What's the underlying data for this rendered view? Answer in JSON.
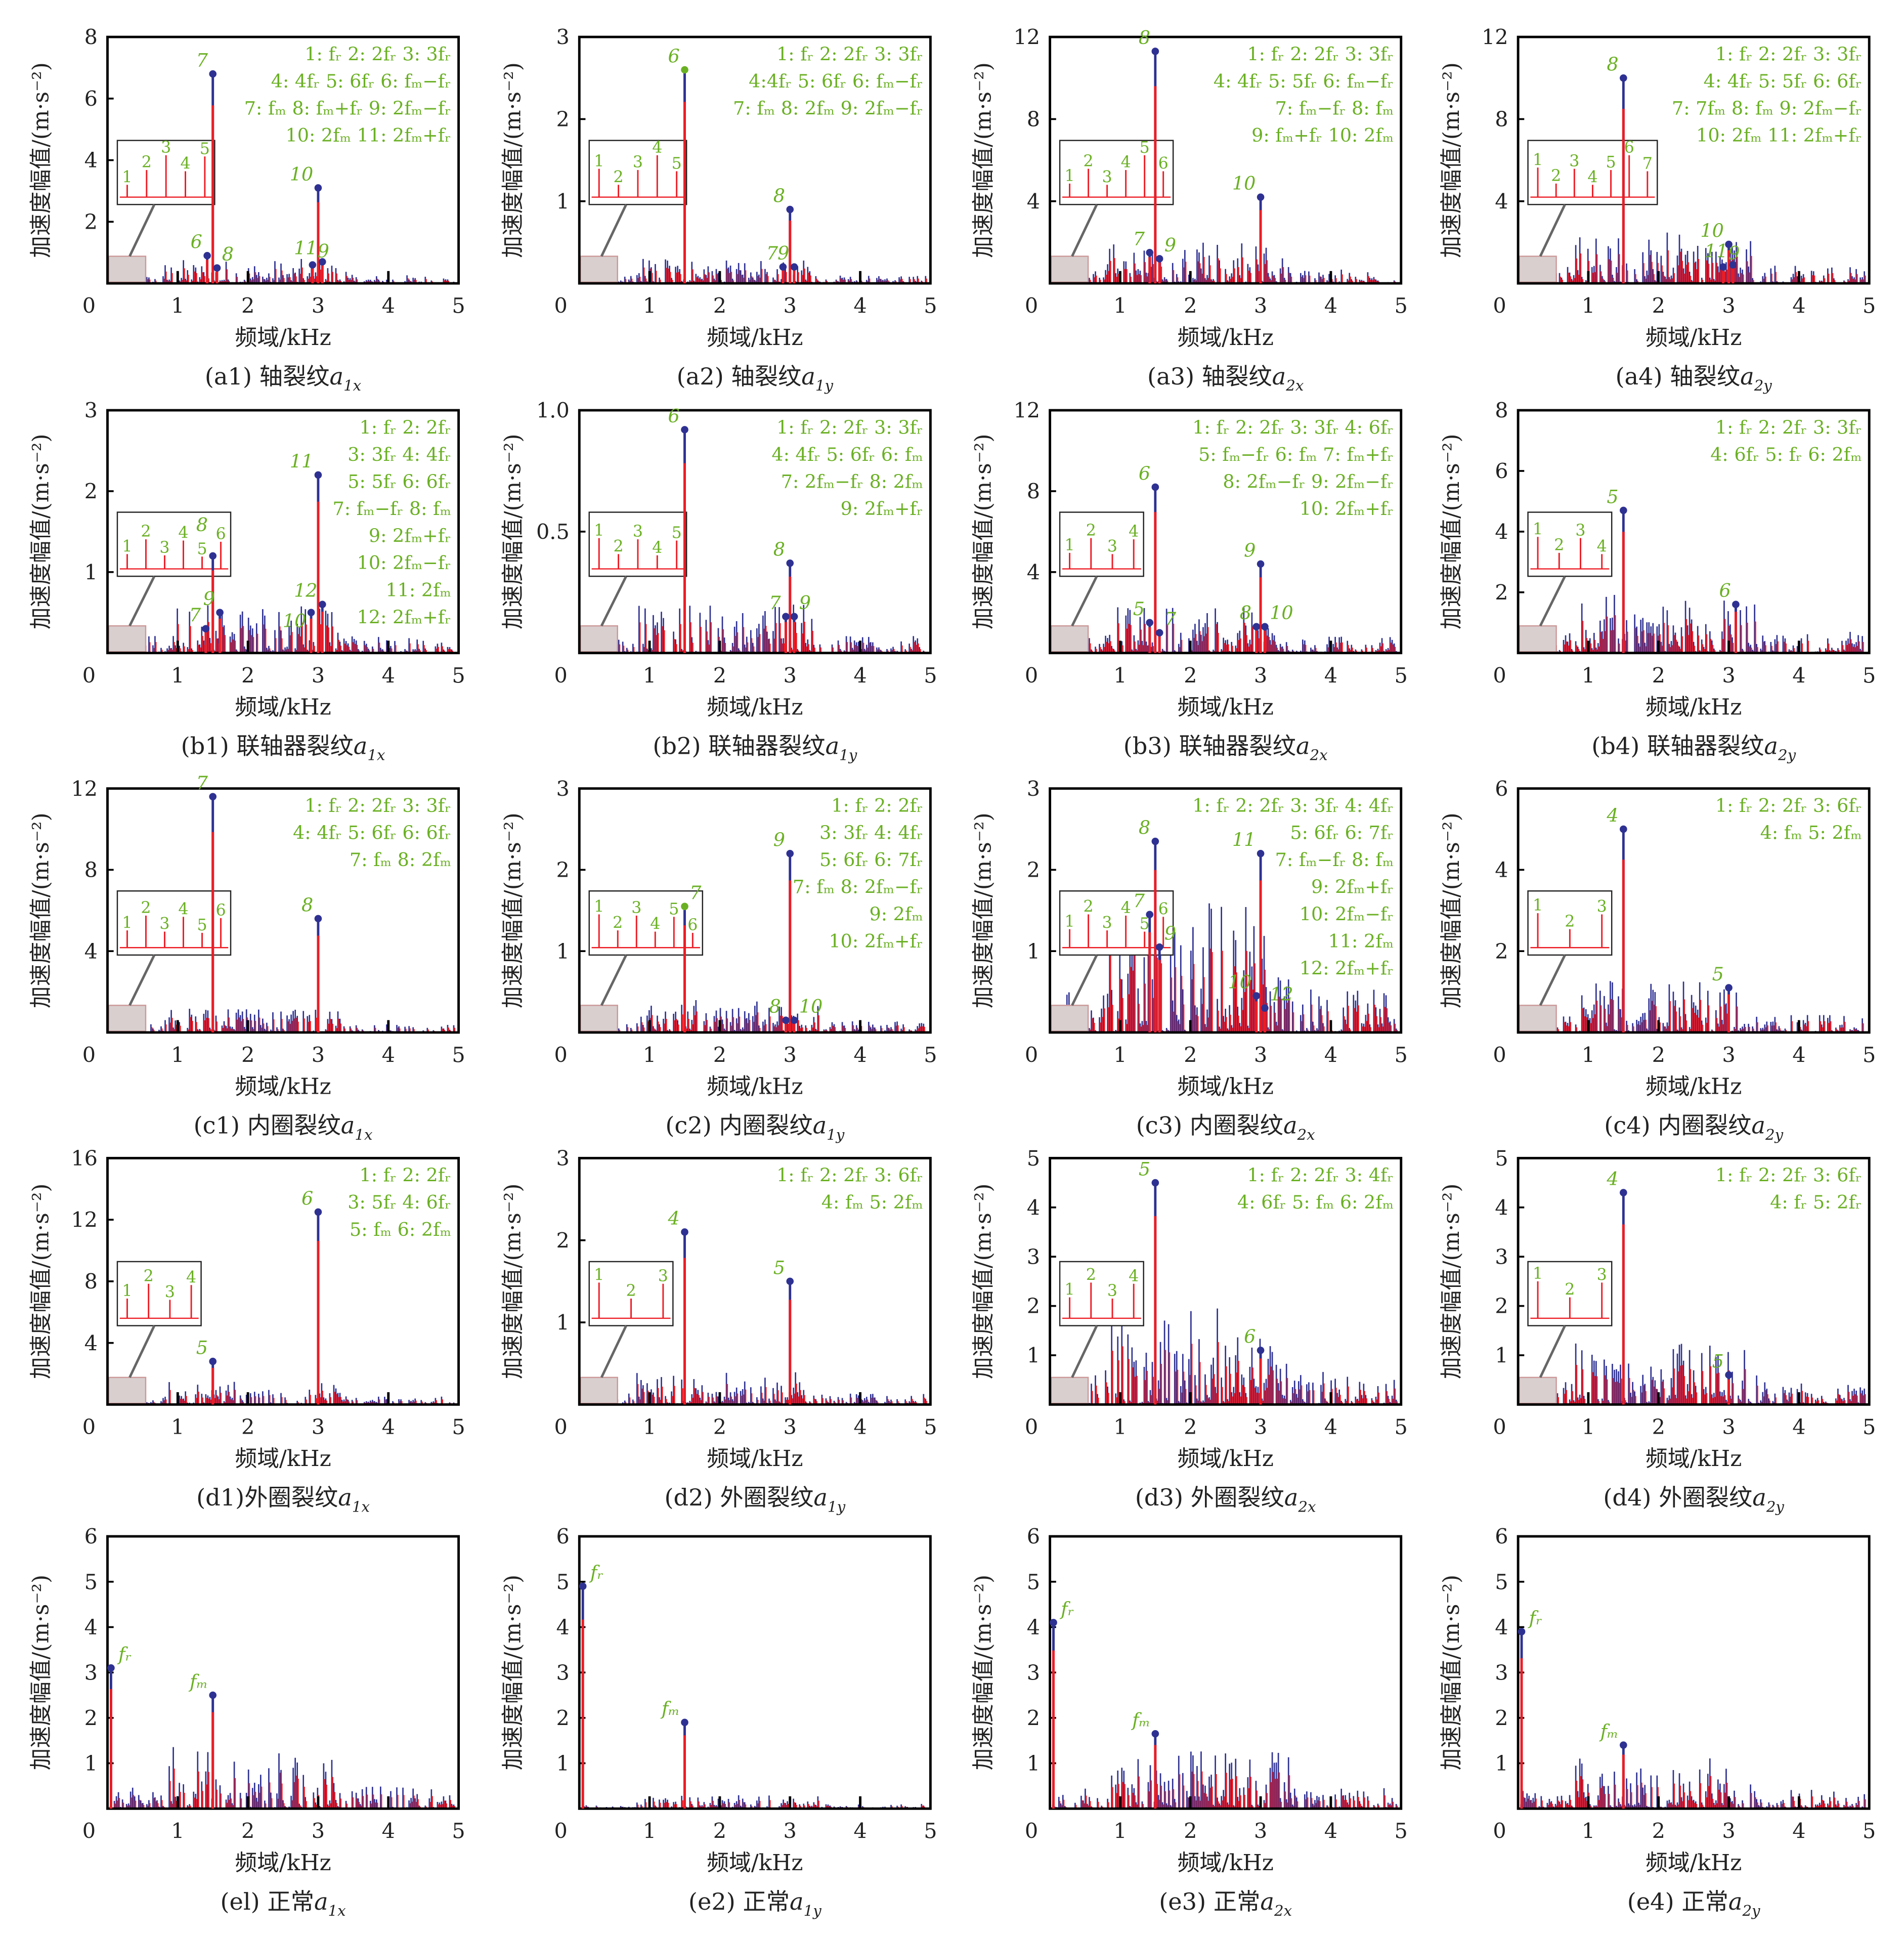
{
  "colors": {
    "blue": "#2e3192",
    "red": "#ed1c24",
    "green": "#6ab023",
    "inset": "#d9cfcf"
  },
  "common": {
    "xlabel": "频域/kHz",
    "ylabel": "加速度幅值/(m·s⁻²)",
    "xticks": [
      "0",
      "1",
      "2",
      "3",
      "4",
      "5"
    ]
  },
  "chart_data": [
    {
      "id": "a1",
      "type": "bar",
      "title": {
        "prefix": "(a1) 轴裂纹",
        "var": "a",
        "sub": "1x"
      },
      "xlim": [
        0,
        5
      ],
      "ylim": [
        0,
        8
      ],
      "yticks": [
        "2",
        "4",
        "6",
        "8"
      ],
      "noise_level": 0.8,
      "legend": [
        "1: fᵣ    2: 2fᵣ    3: 3fᵣ",
        "4: 4fᵣ  5: 6fᵣ   6: fₘ−fᵣ",
        "7: fₘ   8: fₘ+fᵣ  9: 2fₘ−fᵣ",
        "10: 2fₘ     11: 2fₘ+fᵣ"
      ],
      "inset": [
        "1",
        "2",
        "3",
        "4",
        "5"
      ],
      "peaks": [
        {
          "label": "7",
          "f": 1.5,
          "amp": 6.8
        },
        {
          "label": "10",
          "f": 3.0,
          "amp": 3.1
        },
        {
          "label": "6",
          "f": 1.42,
          "amp": 0.9
        },
        {
          "label": "8",
          "f": 1.56,
          "amp": 0.5
        },
        {
          "label": "9",
          "f": 2.92,
          "amp": 0.6
        },
        {
          "label": "11",
          "f": 3.06,
          "amp": 0.7
        }
      ]
    },
    {
      "id": "a2",
      "type": "bar",
      "title": {
        "prefix": "(a2) 轴裂纹",
        "var": "a",
        "sub": "1y"
      },
      "xlim": [
        0,
        5
      ],
      "ylim": [
        0,
        3
      ],
      "yticks": [
        "1",
        "2",
        "3"
      ],
      "noise_level": 0.3,
      "legend": [
        "1: fᵣ    2: 2fᵣ    3: 3fᵣ",
        "4:4fᵣ  5: 6fᵣ   6: fₘ−fᵣ",
        "7: fₘ   8: 2fₘ   9: 2fₘ−fᵣ"
      ],
      "inset": [
        "1",
        "2",
        "3",
        "4",
        "5"
      ],
      "peaks": [
        {
          "label": "6",
          "f": 1.5,
          "amp": 2.6,
          "green": true
        },
        {
          "label": "8",
          "f": 3.0,
          "amp": 0.9
        },
        {
          "label": "7",
          "f": 2.9,
          "amp": 0.2
        },
        {
          "label": "9",
          "f": 3.06,
          "amp": 0.2
        }
      ]
    },
    {
      "id": "a3",
      "type": "bar",
      "title": {
        "prefix": "(a3) 轴裂纹",
        "var": "a",
        "sub": "2x"
      },
      "xlim": [
        0,
        5
      ],
      "ylim": [
        0,
        12
      ],
      "yticks": [
        "4",
        "8",
        "12"
      ],
      "noise_level": 2.0,
      "legend": [
        "1: fᵣ    2: 2fᵣ    3: 3fᵣ",
        "4: 4fᵣ  5: 5fᵣ    6: fₘ−fᵣ",
        "7: fₘ−fᵣ          8: fₘ",
        "9: fₘ+fᵣ      10: 2fₘ"
      ],
      "inset": [
        "1",
        "2",
        "3",
        "4",
        "5",
        "6"
      ],
      "peaks": [
        {
          "label": "8",
          "f": 1.5,
          "amp": 11.3
        },
        {
          "label": "10",
          "f": 3.0,
          "amp": 4.2
        },
        {
          "label": "7",
          "f": 1.42,
          "amp": 1.5
        },
        {
          "label": "9",
          "f": 1.56,
          "amp": 1.2
        }
      ]
    },
    {
      "id": "a4",
      "type": "bar",
      "title": {
        "prefix": "(a4) 轴裂纹",
        "var": "a",
        "sub": "2y"
      },
      "xlim": [
        0,
        5
      ],
      "ylim": [
        0,
        12
      ],
      "yticks": [
        "4",
        "8",
        "12"
      ],
      "noise_level": 2.5,
      "legend": [
        "1: fᵣ    2: 2fᵣ    3: 3fᵣ",
        "4: 4fᵣ  5: 5fᵣ   6: 6fᵣ",
        "7: 7fₘ  8: fₘ  9: 2fₘ−fᵣ",
        "10: 2fₘ    11: 2fₘ+fᵣ"
      ],
      "inset": [
        "1",
        "2",
        "3",
        "4",
        "5",
        "6",
        "7"
      ],
      "peaks": [
        {
          "label": "8",
          "f": 1.5,
          "amp": 10.0
        },
        {
          "label": "10",
          "f": 3.0,
          "amp": 1.9
        },
        {
          "label": "9",
          "f": 2.92,
          "amp": 0.8
        },
        {
          "label": "11",
          "f": 3.06,
          "amp": 0.9
        }
      ]
    },
    {
      "id": "b1",
      "type": "bar",
      "title": {
        "prefix": "(b1) 联轴器裂纹",
        "var": "a",
        "sub": "1x"
      },
      "xlim": [
        0,
        5
      ],
      "ylim": [
        0,
        3
      ],
      "yticks": [
        "1",
        "2",
        "3"
      ],
      "noise_level": 0.6,
      "legend": [
        "1: fᵣ    2: 2fᵣ",
        "3: 3fᵣ  4: 4fᵣ",
        "5: 5fᵣ  6: 6fᵣ",
        "7: fₘ−fᵣ 8: fₘ",
        "9: 2fₘ+fᵣ",
        "10: 2fₘ−fᵣ",
        "11: 2fₘ",
        "12: 2fₘ+fᵣ"
      ],
      "inset": [
        "1",
        "2",
        "3",
        "4",
        "5",
        "6"
      ],
      "peaks": [
        {
          "label": "11",
          "f": 3.0,
          "amp": 2.2
        },
        {
          "label": "8",
          "f": 1.5,
          "amp": 1.2
        },
        {
          "label": "7",
          "f": 1.4,
          "amp": 0.3
        },
        {
          "label": "9",
          "f": 1.6,
          "amp": 0.5
        },
        {
          "label": "10",
          "f": 2.9,
          "amp": 0.5
        },
        {
          "label": "12",
          "f": 3.06,
          "amp": 0.6
        }
      ]
    },
    {
      "id": "b2",
      "type": "bar",
      "title": {
        "prefix": "(b2) 联轴器裂纹",
        "var": "a",
        "sub": "1y"
      },
      "xlim": [
        0,
        5
      ],
      "ylim": [
        0,
        1
      ],
      "yticks": [
        "0.5",
        "1.0"
      ],
      "noise_level": 0.2,
      "legend": [
        "1: fᵣ    2: 2fᵣ    3: 3fᵣ",
        "4: 4fᵣ   5: 6fᵣ    6: fₘ",
        "7: 2fₘ−fᵣ     8: 2fₘ",
        "9: 2fₘ+fᵣ"
      ],
      "inset": [
        "1",
        "2",
        "3",
        "4",
        "5"
      ],
      "peaks": [
        {
          "label": "6",
          "f": 1.5,
          "amp": 0.92
        },
        {
          "label": "8",
          "f": 3.0,
          "amp": 0.37
        },
        {
          "label": "7",
          "f": 2.94,
          "amp": 0.15
        },
        {
          "label": "9",
          "f": 3.06,
          "amp": 0.15
        }
      ]
    },
    {
      "id": "b3",
      "type": "bar",
      "title": {
        "prefix": "(b3) 联轴器裂纹",
        "var": "a",
        "sub": "2x"
      },
      "xlim": [
        0,
        5
      ],
      "ylim": [
        0,
        12
      ],
      "yticks": [
        "4",
        "8",
        "12"
      ],
      "noise_level": 2.5,
      "legend": [
        "1: fᵣ  2: 2fᵣ 3: 3fᵣ  4: 6fᵣ",
        "5: fₘ−fᵣ  6: fₘ   7: fₘ+fᵣ",
        "8: 2fₘ−fᵣ  9: 2fₘ−fᵣ",
        "10: 2fₘ+fᵣ"
      ],
      "inset": [
        "1",
        "2",
        "3",
        "4"
      ],
      "peaks": [
        {
          "label": "6",
          "f": 1.5,
          "amp": 8.2
        },
        {
          "label": "9",
          "f": 3.0,
          "amp": 4.4
        },
        {
          "label": "5",
          "f": 1.42,
          "amp": 1.5
        },
        {
          "label": "7",
          "f": 1.56,
          "amp": 1.0
        },
        {
          "label": "8",
          "f": 2.94,
          "amp": 1.3
        },
        {
          "label": "10",
          "f": 3.06,
          "amp": 1.3
        }
      ]
    },
    {
      "id": "b4",
      "type": "bar",
      "title": {
        "prefix": "(b4) 联轴器裂纹",
        "var": "a",
        "sub": "2y"
      },
      "xlim": [
        0,
        5
      ],
      "ylim": [
        0,
        8
      ],
      "yticks": [
        "2",
        "4",
        "6",
        "8"
      ],
      "noise_level": 2.0,
      "legend": [
        "1: fᵣ    2: 2fᵣ    3: 3fᵣ",
        "4: 6fᵣ  5: fᵣ     6: 2fₘ"
      ],
      "inset": [
        "1",
        "2",
        "3",
        "4"
      ],
      "peaks": [
        {
          "label": "5",
          "f": 1.5,
          "amp": 4.7
        },
        {
          "label": "6",
          "f": 3.1,
          "amp": 1.6
        }
      ]
    },
    {
      "id": "c1",
      "type": "bar",
      "title": {
        "prefix": "(c1) 内圈裂纹",
        "var": "a",
        "sub": "1x"
      },
      "xlim": [
        0,
        5
      ],
      "ylim": [
        0,
        12
      ],
      "yticks": [
        "4",
        "8",
        "12"
      ],
      "noise_level": 1.2,
      "legend": [
        "1: fᵣ    2: 2fᵣ    3: 3fᵣ",
        "4: 4fᵣ  5: 6fᵣ   6: 6fᵣ",
        "7: fₘ    8: 2fₘ"
      ],
      "inset": [
        "1",
        "2",
        "3",
        "4",
        "5",
        "6"
      ],
      "peaks": [
        {
          "label": "7",
          "f": 1.5,
          "amp": 11.6
        },
        {
          "label": "8",
          "f": 3.0,
          "amp": 5.6
        }
      ]
    },
    {
      "id": "c2",
      "type": "bar",
      "title": {
        "prefix": "(c2) 内圈裂纹",
        "var": "a",
        "sub": "1y"
      },
      "xlim": [
        0,
        5
      ],
      "ylim": [
        0,
        3
      ],
      "yticks": [
        "1",
        "2",
        "3"
      ],
      "noise_level": 0.4,
      "legend": [
        "1: fᵣ 2: 2fᵣ",
        "3: 3fᵣ 4: 4fᵣ",
        "5: 6fᵣ  6: 7fᵣ",
        "7: fₘ  8: 2fₘ−fᵣ",
        "9: 2fₘ",
        "10: 2fₘ+fᵣ"
      ],
      "inset": [
        "1",
        "2",
        "3",
        "4",
        "5",
        "6"
      ],
      "peaks": [
        {
          "label": "7",
          "f": 1.5,
          "amp": 1.55,
          "green": true
        },
        {
          "label": "9",
          "f": 3.0,
          "amp": 2.2
        },
        {
          "label": "8",
          "f": 2.94,
          "amp": 0.15
        },
        {
          "label": "10",
          "f": 3.06,
          "amp": 0.15
        }
      ]
    },
    {
      "id": "c3",
      "type": "bar",
      "title": {
        "prefix": "(c3) 内圈裂纹",
        "var": "a",
        "sub": "2x"
      },
      "xlim": [
        0,
        5
      ],
      "ylim": [
        0,
        3
      ],
      "yticks": [
        "1",
        "2",
        "3"
      ],
      "noise_level": 1.6,
      "legend": [
        "1: fᵣ  2: 2fᵣ  3: 3fᵣ  4: 4fᵣ",
        "5: 6fᵣ  6: 7fᵣ",
        "7: fₘ−fᵣ  8: fₘ",
        "9: 2fₘ+fᵣ",
        "10: 2fₘ−fᵣ",
        "11: 2fₘ",
        "12: 2fₘ+fᵣ"
      ],
      "inset": [
        "1",
        "2",
        "3",
        "4",
        "5",
        "6"
      ],
      "peaks": [
        {
          "label": "8",
          "f": 1.5,
          "amp": 2.35
        },
        {
          "label": "11",
          "f": 3.0,
          "amp": 2.2
        },
        {
          "label": "7",
          "f": 1.42,
          "amp": 1.45
        },
        {
          "label": "9",
          "f": 1.56,
          "amp": 1.05
        },
        {
          "label": "10",
          "f": 2.94,
          "amp": 0.45
        },
        {
          "label": "12",
          "f": 3.06,
          "amp": 0.3
        }
      ]
    },
    {
      "id": "c4",
      "type": "bar",
      "title": {
        "prefix": "(c4) 内圈裂纹",
        "var": "a",
        "sub": "2y"
      },
      "xlim": [
        0,
        5
      ],
      "ylim": [
        0,
        6
      ],
      "yticks": [
        "2",
        "4",
        "6"
      ],
      "noise_level": 1.3,
      "legend": [
        "1: fᵣ    2: 2fᵣ    3: 6fᵣ",
        "4: fₘ  5: 2fₘ"
      ],
      "inset": [
        "1",
        "2",
        "3"
      ],
      "peaks": [
        {
          "label": "4",
          "f": 1.5,
          "amp": 5.0
        },
        {
          "label": "5",
          "f": 3.0,
          "amp": 1.1
        }
      ]
    },
    {
      "id": "d1",
      "type": "bar",
      "title": {
        "prefix": "(d1)外圈裂纹",
        "var": "a",
        "sub": "1x"
      },
      "xlim": [
        0,
        5
      ],
      "ylim": [
        0,
        16
      ],
      "yticks": [
        "4",
        "8",
        "12",
        "16"
      ],
      "noise_level": 1.5,
      "legend": [
        "1: fᵣ    2: 2fᵣ",
        "3: 5fᵣ  4: 6fᵣ",
        "5: fₘ    6: 2fₘ"
      ],
      "inset": [
        "1",
        "2",
        "3",
        "4"
      ],
      "peaks": [
        {
          "label": "6",
          "f": 3.0,
          "amp": 12.5
        },
        {
          "label": "5",
          "f": 1.5,
          "amp": 2.8
        }
      ]
    },
    {
      "id": "d2",
      "type": "bar",
      "title": {
        "prefix": "(d2) 外圈裂纹",
        "var": "a",
        "sub": "1y"
      },
      "xlim": [
        0,
        5
      ],
      "ylim": [
        0,
        3
      ],
      "yticks": [
        "1",
        "2",
        "3"
      ],
      "noise_level": 0.4,
      "legend": [
        "1: fᵣ    2: 2fᵣ  3: 6fᵣ",
        "4: fₘ  5: 2fₘ"
      ],
      "inset": [
        "1",
        "2",
        "3"
      ],
      "peaks": [
        {
          "label": "4",
          "f": 1.5,
          "amp": 2.1
        },
        {
          "label": "5",
          "f": 3.0,
          "amp": 1.5
        }
      ]
    },
    {
      "id": "d3",
      "type": "bar",
      "title": {
        "prefix": "(d3) 外圈裂纹",
        "var": "a",
        "sub": "2x"
      },
      "xlim": [
        0,
        5
      ],
      "ylim": [
        0,
        5
      ],
      "yticks": [
        "1",
        "2",
        "3",
        "4",
        "5"
      ],
      "noise_level": 2.0,
      "legend": [
        "1: fᵣ    2: 2fᵣ    3: 4fᵣ",
        "4: 6fᵣ    5: fₘ    6: 2fₘ"
      ],
      "inset": [
        "1",
        "2",
        "3",
        "4"
      ],
      "peaks": [
        {
          "label": "5",
          "f": 1.5,
          "amp": 4.5
        },
        {
          "label": "6",
          "f": 3.0,
          "amp": 1.1
        }
      ]
    },
    {
      "id": "d4",
      "type": "bar",
      "title": {
        "prefix": "(d4) 外圈裂纹",
        "var": "a",
        "sub": "2y"
      },
      "xlim": [
        0,
        5
      ],
      "ylim": [
        0,
        5
      ],
      "yticks": [
        "1",
        "2",
        "3",
        "4",
        "5"
      ],
      "noise_level": 1.3,
      "legend": [
        "1: fᵣ    2: 2fᵣ   3: 6fᵣ",
        "4:  fᵣ      5: 2fᵣ"
      ],
      "inset": [
        "1",
        "2",
        "3"
      ],
      "peaks": [
        {
          "label": "4",
          "f": 1.5,
          "amp": 4.3
        },
        {
          "label": "5",
          "f": 3.0,
          "amp": 0.6
        }
      ]
    },
    {
      "id": "e1",
      "type": "bar",
      "title": {
        "prefix": "(el) 正常",
        "var": "a",
        "sub": "1x"
      },
      "xlim": [
        0,
        5
      ],
      "ylim": [
        0,
        6
      ],
      "yticks": [
        "1",
        "2",
        "3",
        "4",
        "5",
        "6"
      ],
      "noise_level": 1.4,
      "legend": [],
      "inset": [],
      "peaks": [
        {
          "label": "fᵣ",
          "f": 0.05,
          "amp": 3.1
        },
        {
          "label": "fₘ",
          "f": 1.5,
          "amp": 2.5
        }
      ]
    },
    {
      "id": "e2",
      "type": "bar",
      "title": {
        "prefix": "(e2) 正常",
        "var": "a",
        "sub": "1y"
      },
      "xlim": [
        0,
        5
      ],
      "ylim": [
        0,
        6
      ],
      "yticks": [
        "1",
        "2",
        "3",
        "4",
        "5",
        "6"
      ],
      "noise_level": 0.3,
      "legend": [],
      "inset": [],
      "peaks": [
        {
          "label": "fᵣ",
          "f": 0.05,
          "amp": 4.9
        },
        {
          "label": "fₘ",
          "f": 1.5,
          "amp": 1.9
        }
      ]
    },
    {
      "id": "e3",
      "type": "bar",
      "title": {
        "prefix": "(e3) 正常",
        "var": "a",
        "sub": "2x"
      },
      "xlim": [
        0,
        5
      ],
      "ylim": [
        0,
        6
      ],
      "yticks": [
        "1",
        "2",
        "3",
        "4",
        "5",
        "6"
      ],
      "noise_level": 1.3,
      "legend": [],
      "inset": [],
      "peaks": [
        {
          "label": "fᵣ",
          "f": 0.05,
          "amp": 4.1
        },
        {
          "label": "fₘ",
          "f": 1.5,
          "amp": 1.65
        }
      ]
    },
    {
      "id": "e4",
      "type": "bar",
      "title": {
        "prefix": "(e4) 正常",
        "var": "a",
        "sub": "2y"
      },
      "xlim": [
        0,
        5
      ],
      "ylim": [
        0,
        6
      ],
      "yticks": [
        "1",
        "2",
        "3",
        "4",
        "5",
        "6"
      ],
      "noise_level": 1.2,
      "legend": [],
      "inset": [],
      "peaks": [
        {
          "label": "fᵣ",
          "f": 0.05,
          "amp": 3.9
        },
        {
          "label": "fₘ",
          "f": 1.5,
          "amp": 1.4
        }
      ]
    }
  ]
}
